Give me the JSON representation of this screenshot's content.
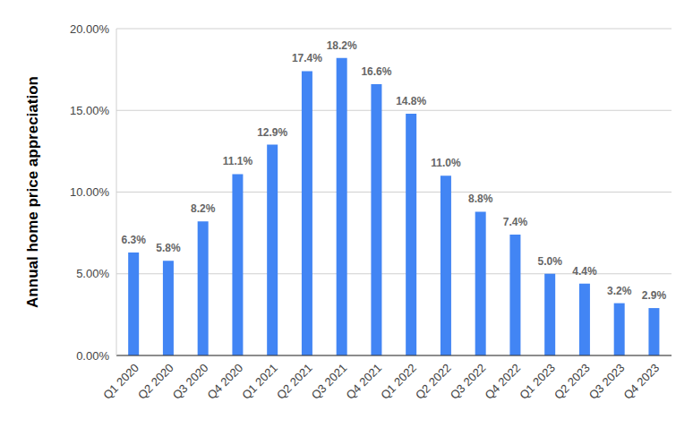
{
  "chart_data": {
    "type": "bar",
    "y_label": "Annual home price appreciation",
    "categories": [
      "Q1 2020",
      "Q2 2020",
      "Q3 2020",
      "Q4 2020",
      "Q1 2021",
      "Q2 2021",
      "Q3 2021",
      "Q4 2021",
      "Q1 2022",
      "Q2 2022",
      "Q3 2022",
      "Q4 2022",
      "Q1 2023",
      "Q2 2023",
      "Q3 2023",
      "Q4 2023"
    ],
    "values": [
      6.3,
      5.8,
      8.2,
      11.1,
      12.9,
      17.4,
      18.2,
      16.6,
      14.8,
      11.0,
      8.8,
      7.4,
      5.0,
      4.4,
      3.2,
      2.9
    ],
    "value_labels": [
      "6.3%",
      "5.8%",
      "8.2%",
      "11.1%",
      "12.9%",
      "17.4%",
      "18.2%",
      "16.6%",
      "14.8%",
      "11.0%",
      "8.8%",
      "7.4%",
      "5.0%",
      "4.4%",
      "3.2%",
      "2.9%"
    ],
    "color": "#4285f4",
    "ylim": [
      0,
      20
    ],
    "yticks": [
      {
        "value": 0,
        "label": "0.00%"
      },
      {
        "value": 5,
        "label": "5.00%"
      },
      {
        "value": 10,
        "label": "10.00%"
      },
      {
        "value": 15,
        "label": "15.00%"
      },
      {
        "value": 20,
        "label": "20.00%"
      }
    ],
    "grid": true,
    "data_labels": true
  }
}
